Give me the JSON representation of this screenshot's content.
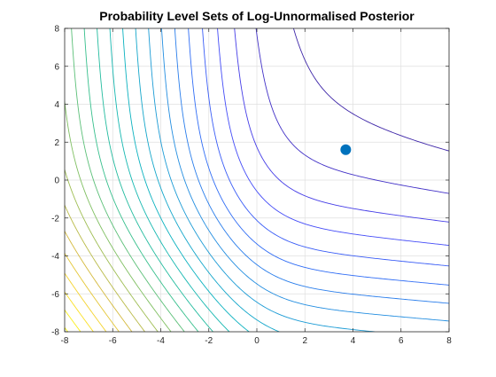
{
  "chart_data": {
    "type": "contour",
    "title": "Probability Level Sets of Log-Unnormalised Posterior",
    "xlabel": "",
    "ylabel": "",
    "xlim": [
      -8,
      8
    ],
    "ylim": [
      -8,
      8
    ],
    "xticks": [
      "-8",
      "-6",
      "-4",
      "-2",
      "0",
      "2",
      "4",
      "6",
      "8"
    ],
    "yticks": [
      "-8",
      "-6",
      "-4",
      "-2",
      "0",
      "2",
      "4",
      "6",
      "8"
    ],
    "grid": true,
    "colormap": "parula",
    "colormap_stops": [
      "#3e26a8",
      "#4743f8",
      "#2f6ff5",
      "#1e97d9",
      "#08b3bd",
      "#2ebf91",
      "#8bbf5a",
      "#d2b83d",
      "#fbd92a",
      "#f9fb0e"
    ],
    "levels": 24,
    "marker": {
      "x": 3.7,
      "y": 1.6,
      "color": "#0072bd"
    }
  }
}
